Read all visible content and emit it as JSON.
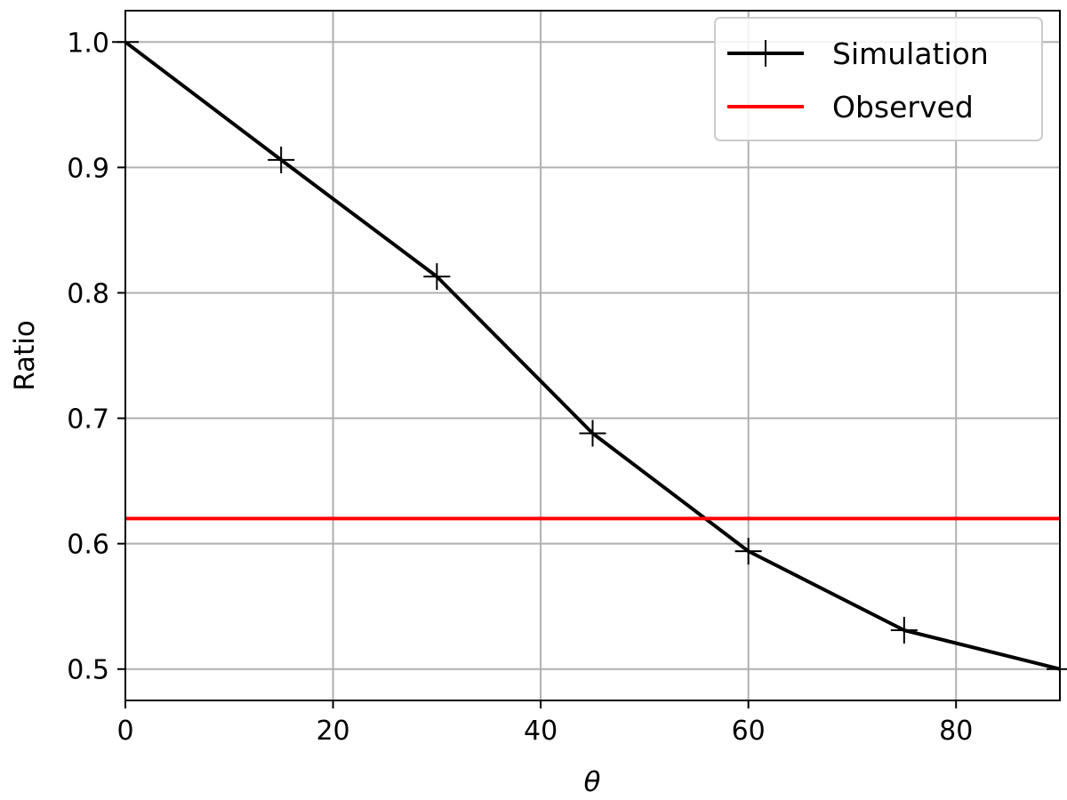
{
  "chart_data": {
    "type": "line",
    "title": "",
    "xlabel": "θ",
    "ylabel": "Ratio",
    "xlim": [
      0,
      90
    ],
    "ylim": [
      0.475,
      1.025
    ],
    "xticks": [
      0,
      20,
      40,
      60,
      80
    ],
    "yticks": [
      0.5,
      0.6,
      0.7,
      0.8,
      0.9,
      1.0
    ],
    "xtick_labels": [
      "0",
      "20",
      "40",
      "60",
      "80"
    ],
    "ytick_labels": [
      "0.5",
      "0.6",
      "0.7",
      "0.8",
      "0.9",
      "1.0"
    ],
    "grid": true,
    "legend_position": "top-right",
    "series": [
      {
        "name": "Simulation",
        "color": "#000000",
        "marker": "plus",
        "x": [
          0,
          15,
          30,
          45,
          60,
          75,
          90
        ],
        "y": [
          1.0,
          0.906,
          0.813,
          0.688,
          0.594,
          0.531,
          0.5
        ]
      },
      {
        "name": "Observed",
        "color": "#ff0000",
        "type": "hline",
        "y": 0.62
      }
    ]
  }
}
